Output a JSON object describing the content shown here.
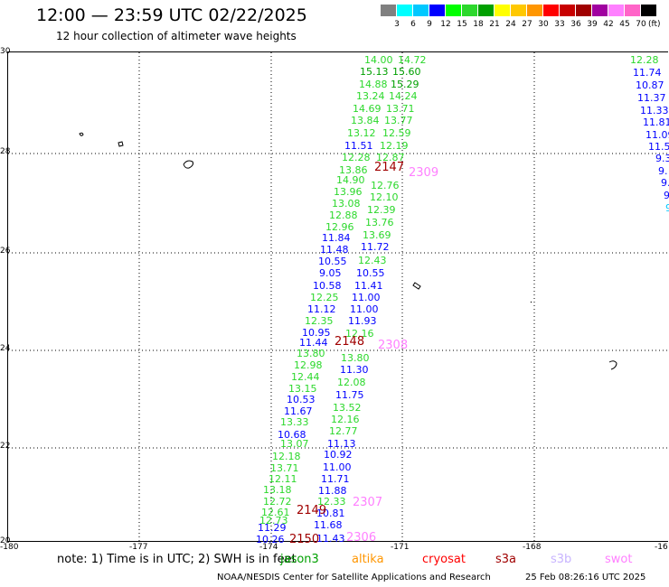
{
  "header": {
    "title": "12:00 — 23:59 UTC 02/22/2025",
    "subtitle": "12 hour collection of altimeter wave heights"
  },
  "legend": {
    "unit": "(ft)",
    "colors": [
      "#808080",
      "#00ffff",
      "#00c8ff",
      "#0000ff",
      "#00ff00",
      "#2cd82c",
      "#00a000",
      "#ffff00",
      "#ffc800",
      "#ff9600",
      "#ff0000",
      "#c80000",
      "#a00000",
      "#a000a0",
      "#ff80ff",
      "#ff64c8",
      "#000000"
    ],
    "labels": [
      "3",
      "6",
      "9",
      "12",
      "15",
      "18",
      "21",
      "24",
      "27",
      "30",
      "33",
      "36",
      "39",
      "42",
      "45",
      "70"
    ]
  },
  "axes": {
    "lat_labels": [
      "30",
      "28",
      "26",
      "24",
      "22",
      "20"
    ],
    "lon_labels": [
      "-180",
      "-177",
      "-174",
      "-171",
      "-168",
      "-16"
    ]
  },
  "wave_readings": [
    {
      "value": "14.00",
      "color": "#2cd82c"
    },
    {
      "value": "14.72",
      "color": "#2cd82c"
    },
    {
      "value": "15.13",
      "color": "#00a000"
    },
    {
      "value": "15.60",
      "color": "#00a000"
    },
    {
      "value": "14.88",
      "color": "#2cd82c"
    },
    {
      "value": "15.29",
      "color": "#00a000"
    },
    {
      "value": "13.24",
      "color": "#2cd82c"
    },
    {
      "value": "14.24",
      "color": "#2cd82c"
    },
    {
      "value": "14.69",
      "color": "#2cd82c"
    },
    {
      "value": "13.71",
      "color": "#2cd82c"
    },
    {
      "value": "13.84",
      "color": "#2cd82c"
    },
    {
      "value": "13.77",
      "color": "#2cd82c"
    },
    {
      "value": "13.12",
      "color": "#2cd82c"
    },
    {
      "value": "12.59",
      "color": "#2cd82c"
    },
    {
      "value": "11.51",
      "color": "#0000ff"
    },
    {
      "value": "12.19",
      "color": "#2cd82c"
    },
    {
      "value": "12.28",
      "color": "#2cd82c"
    },
    {
      "value": "12.87",
      "color": "#2cd82c"
    },
    {
      "value": "13.86",
      "color": "#2cd82c"
    },
    {
      "value": "14.90",
      "color": "#2cd82c"
    },
    {
      "value": "12.76",
      "color": "#2cd82c"
    },
    {
      "value": "13.96",
      "color": "#2cd82c"
    },
    {
      "value": "12.10",
      "color": "#2cd82c"
    },
    {
      "value": "13.08",
      "color": "#2cd82c"
    },
    {
      "value": "12.88",
      "color": "#2cd82c"
    },
    {
      "value": "12.39",
      "color": "#2cd82c"
    },
    {
      "value": "12.96",
      "color": "#2cd82c"
    },
    {
      "value": "13.76",
      "color": "#2cd82c"
    },
    {
      "value": "11.84",
      "color": "#0000ff"
    },
    {
      "value": "13.69",
      "color": "#2cd82c"
    },
    {
      "value": "11.48",
      "color": "#0000ff"
    },
    {
      "value": "11.72",
      "color": "#0000ff"
    },
    {
      "value": "10.55",
      "color": "#0000ff"
    },
    {
      "value": "12.43",
      "color": "#2cd82c"
    },
    {
      "value": "9.05",
      "color": "#0000ff"
    },
    {
      "value": "10.55",
      "color": "#0000ff"
    },
    {
      "value": "10.58",
      "color": "#0000ff"
    },
    {
      "value": "11.41",
      "color": "#0000ff"
    },
    {
      "value": "12.25",
      "color": "#2cd82c"
    },
    {
      "value": "11.00",
      "color": "#0000ff"
    },
    {
      "value": "11.12",
      "color": "#0000ff"
    },
    {
      "value": "11.00",
      "color": "#0000ff"
    },
    {
      "value": "12.35",
      "color": "#2cd82c"
    },
    {
      "value": "11.93",
      "color": "#0000ff"
    },
    {
      "value": "10.95",
      "color": "#0000ff"
    },
    {
      "value": "12.16",
      "color": "#2cd82c"
    },
    {
      "value": "11.44",
      "color": "#0000ff"
    },
    {
      "value": "13.80",
      "color": "#2cd82c"
    },
    {
      "value": "13.80",
      "color": "#2cd82c"
    },
    {
      "value": "12.98",
      "color": "#2cd82c"
    },
    {
      "value": "11.30",
      "color": "#0000ff"
    },
    {
      "value": "12.44",
      "color": "#2cd82c"
    },
    {
      "value": "12.08",
      "color": "#2cd82c"
    },
    {
      "value": "13.15",
      "color": "#2cd82c"
    },
    {
      "value": "11.75",
      "color": "#0000ff"
    },
    {
      "value": "10.53",
      "color": "#0000ff"
    },
    {
      "value": "13.52",
      "color": "#2cd82c"
    },
    {
      "value": "11.67",
      "color": "#0000ff"
    },
    {
      "value": "12.16",
      "color": "#2cd82c"
    },
    {
      "value": "13.33",
      "color": "#2cd82c"
    },
    {
      "value": "12.77",
      "color": "#2cd82c"
    },
    {
      "value": "10.68",
      "color": "#0000ff"
    },
    {
      "value": "13.07",
      "color": "#2cd82c"
    },
    {
      "value": "11.13",
      "color": "#0000ff"
    },
    {
      "value": "10.92",
      "color": "#0000ff"
    },
    {
      "value": "12.18",
      "color": "#2cd82c"
    },
    {
      "value": "13.71",
      "color": "#2cd82c"
    },
    {
      "value": "11.00",
      "color": "#0000ff"
    },
    {
      "value": "12.11",
      "color": "#2cd82c"
    },
    {
      "value": "11.71",
      "color": "#0000ff"
    },
    {
      "value": "11.88",
      "color": "#0000ff"
    },
    {
      "value": "13.18",
      "color": "#2cd82c"
    },
    {
      "value": "12.72",
      "color": "#2cd82c"
    },
    {
      "value": "12.33",
      "color": "#2cd82c"
    },
    {
      "value": "12.61",
      "color": "#2cd82c"
    },
    {
      "value": "10.81",
      "color": "#0000ff"
    },
    {
      "value": "12.73",
      "color": "#2cd82c"
    },
    {
      "value": "11.29",
      "color": "#0000ff"
    },
    {
      "value": "11.68",
      "color": "#0000ff"
    },
    {
      "value": "10.26",
      "color": "#0000ff"
    },
    {
      "value": "11.43",
      "color": "#0000ff"
    },
    {
      "value": "12.28",
      "color": "#2cd82c"
    },
    {
      "value": "11.74",
      "color": "#0000ff"
    },
    {
      "value": "10.87",
      "color": "#0000ff"
    },
    {
      "value": "11.37",
      "color": "#0000ff"
    },
    {
      "value": "11.33",
      "color": "#0000ff"
    },
    {
      "value": "11.81",
      "color": "#0000ff"
    },
    {
      "value": "11.09",
      "color": "#0000ff"
    },
    {
      "value": "11.5",
      "color": "#0000ff"
    },
    {
      "value": "9.3",
      "color": "#0000ff"
    },
    {
      "value": "9.",
      "color": "#0000ff"
    },
    {
      "value": "9.",
      "color": "#0000ff"
    },
    {
      "value": "9",
      "color": "#0000ff"
    },
    {
      "value": "9",
      "color": "#00c8ff"
    }
  ],
  "track_times": [
    {
      "value": "2147",
      "color": "#a00000"
    },
    {
      "value": "2148",
      "color": "#a00000"
    },
    {
      "value": "2149",
      "color": "#a00000"
    },
    {
      "value": "2150",
      "color": "#a00000"
    }
  ],
  "pass_labels": [
    {
      "value": "2309",
      "color": "#ff80ff"
    },
    {
      "value": "2308",
      "color": "#ff80ff"
    },
    {
      "value": "2307",
      "color": "#ff80ff"
    },
    {
      "value": "2306",
      "color": "#ff80ff"
    }
  ],
  "footer": {
    "note": "note: 1) Time is in UTC; 2) SWH is in feet",
    "satellites": [
      {
        "name": "jason3",
        "color": "#00a000"
      },
      {
        "name": "altika",
        "color": "#ff9600"
      },
      {
        "name": "cryosat",
        "color": "#ff0000"
      },
      {
        "name": "s3a",
        "color": "#a00000"
      },
      {
        "name": "s3b",
        "color": "#c8b4ff"
      },
      {
        "name": "swot",
        "color": "#ff80ff"
      }
    ],
    "credit": "NOAA/NESDIS Center for Satellite Applications and Research",
    "timestamp": "25 Feb 08:26:16 UTC 2025"
  }
}
